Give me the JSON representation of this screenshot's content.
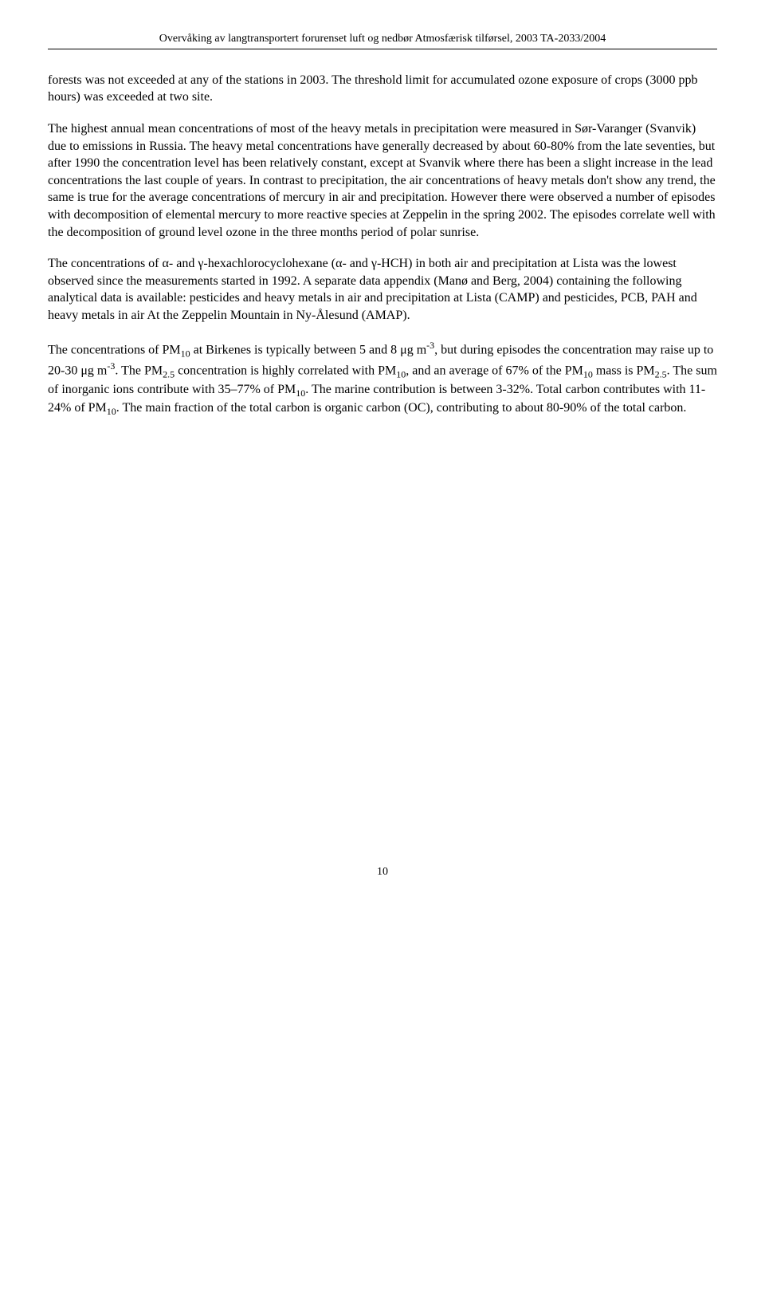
{
  "header": "Overvåking av langtransportert forurenset luft og nedbør Atmosfærisk tilførsel, 2003 TA-2033/2004",
  "paragraphs": {
    "p1": "forests was not exceeded at any of the stations in 2003. The threshold limit for accumulated ozone exposure of crops (3000 ppb hours) was exceeded at two site.",
    "p2": "The highest annual mean concentrations of most of the heavy metals in precipitation were measured in Sør-Varanger (Svanvik) due to emissions in Russia. The heavy metal concentrations have generally decreased by about 60-80% from the late seventies, but after 1990 the concentration level has been relatively constant, except at Svanvik where there has been a slight increase in the lead concentrations the last couple of years. In contrast to precipitation, the air concentrations of heavy metals don't show any trend, the same is true for the average concentrations of mercury in air and precipitation. However there were observed a number of episodes with decomposition of elemental mercury to more reactive species at Zeppelin in the spring 2002. The episodes correlate well with the decomposition of ground level ozone in the three months period of polar sunrise.",
    "p3": "The concentrations of α- and γ-hexachlorocyclohexane (α- and γ-HCH) in both air and precipitation at Lista was the lowest observed since the measurements started in 1992. A separate data appendix (Manø and Berg, 2004) containing the following analytical data is available: pesticides and heavy metals in air and precipitation at Lista (CAMP) and pesticides, PCB, PAH and heavy metals in air At the Zeppelin Mountain in Ny-Ålesund (AMAP).",
    "p4_html": "The concentrations of PM<sub>10</sub> at Birkenes is typically between 5 and 8 μg m<sup>-3</sup>, but during episodes the concentration may raise up to 20-30 μg m<sup>-3</sup>. The PM<sub>2.5</sub> concentration is highly correlated with PM<sub>10</sub>, and an average of 67% of the PM<sub>10</sub> mass is PM<sub>2.5</sub>. The sum of inorganic ions contribute with 35–77% of PM<sub>10</sub>. The marine contribution is between 3-32%. Total carbon contributes with 11-24% of PM<sub>10</sub>. The main fraction of the total carbon is organic carbon (OC), contributing to about 80-90% of the total carbon."
  },
  "pageNumber": "10"
}
